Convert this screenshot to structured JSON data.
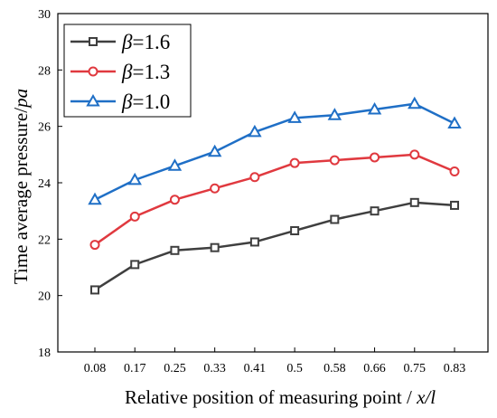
{
  "chart_data": {
    "type": "line",
    "title": "",
    "xlabel": "Relative position of measuring point / x/l",
    "xlabel_main": "Relative position of measuring point / ",
    "xlabel_var": "x/l",
    "ylabel": "Time average pressure/pa",
    "ylabel_main": "Time average pressure/",
    "ylabel_unit": "pa",
    "categories": [
      "0.08",
      "0.17",
      "0.25",
      "0.33",
      "0.41",
      "0.5",
      "0.58",
      "0.66",
      "0.75",
      "0.83"
    ],
    "ylim": [
      18,
      30
    ],
    "yticks": [
      18,
      20,
      22,
      24,
      26,
      28,
      30
    ],
    "grid": false,
    "legend_position": "top-left",
    "series": [
      {
        "name": "β=1.6",
        "symbol": "β",
        "value_label": "=1.6",
        "color": "#3f3f3f",
        "marker": "square",
        "values": [
          20.2,
          21.1,
          21.6,
          21.7,
          21.9,
          22.3,
          22.7,
          23.0,
          23.3,
          23.2
        ]
      },
      {
        "name": "β=1.3",
        "symbol": "β",
        "value_label": "=1.3",
        "color": "#e0393f",
        "marker": "circle",
        "values": [
          21.8,
          22.8,
          23.4,
          23.8,
          24.2,
          24.7,
          24.8,
          24.9,
          25.0,
          24.4
        ]
      },
      {
        "name": "β=1.0",
        "symbol": "β",
        "value_label": "=1.0",
        "color": "#1f6fc6",
        "marker": "triangle",
        "values": [
          23.4,
          24.1,
          24.6,
          25.1,
          25.8,
          26.3,
          26.4,
          26.6,
          26.8,
          26.1
        ]
      }
    ]
  }
}
